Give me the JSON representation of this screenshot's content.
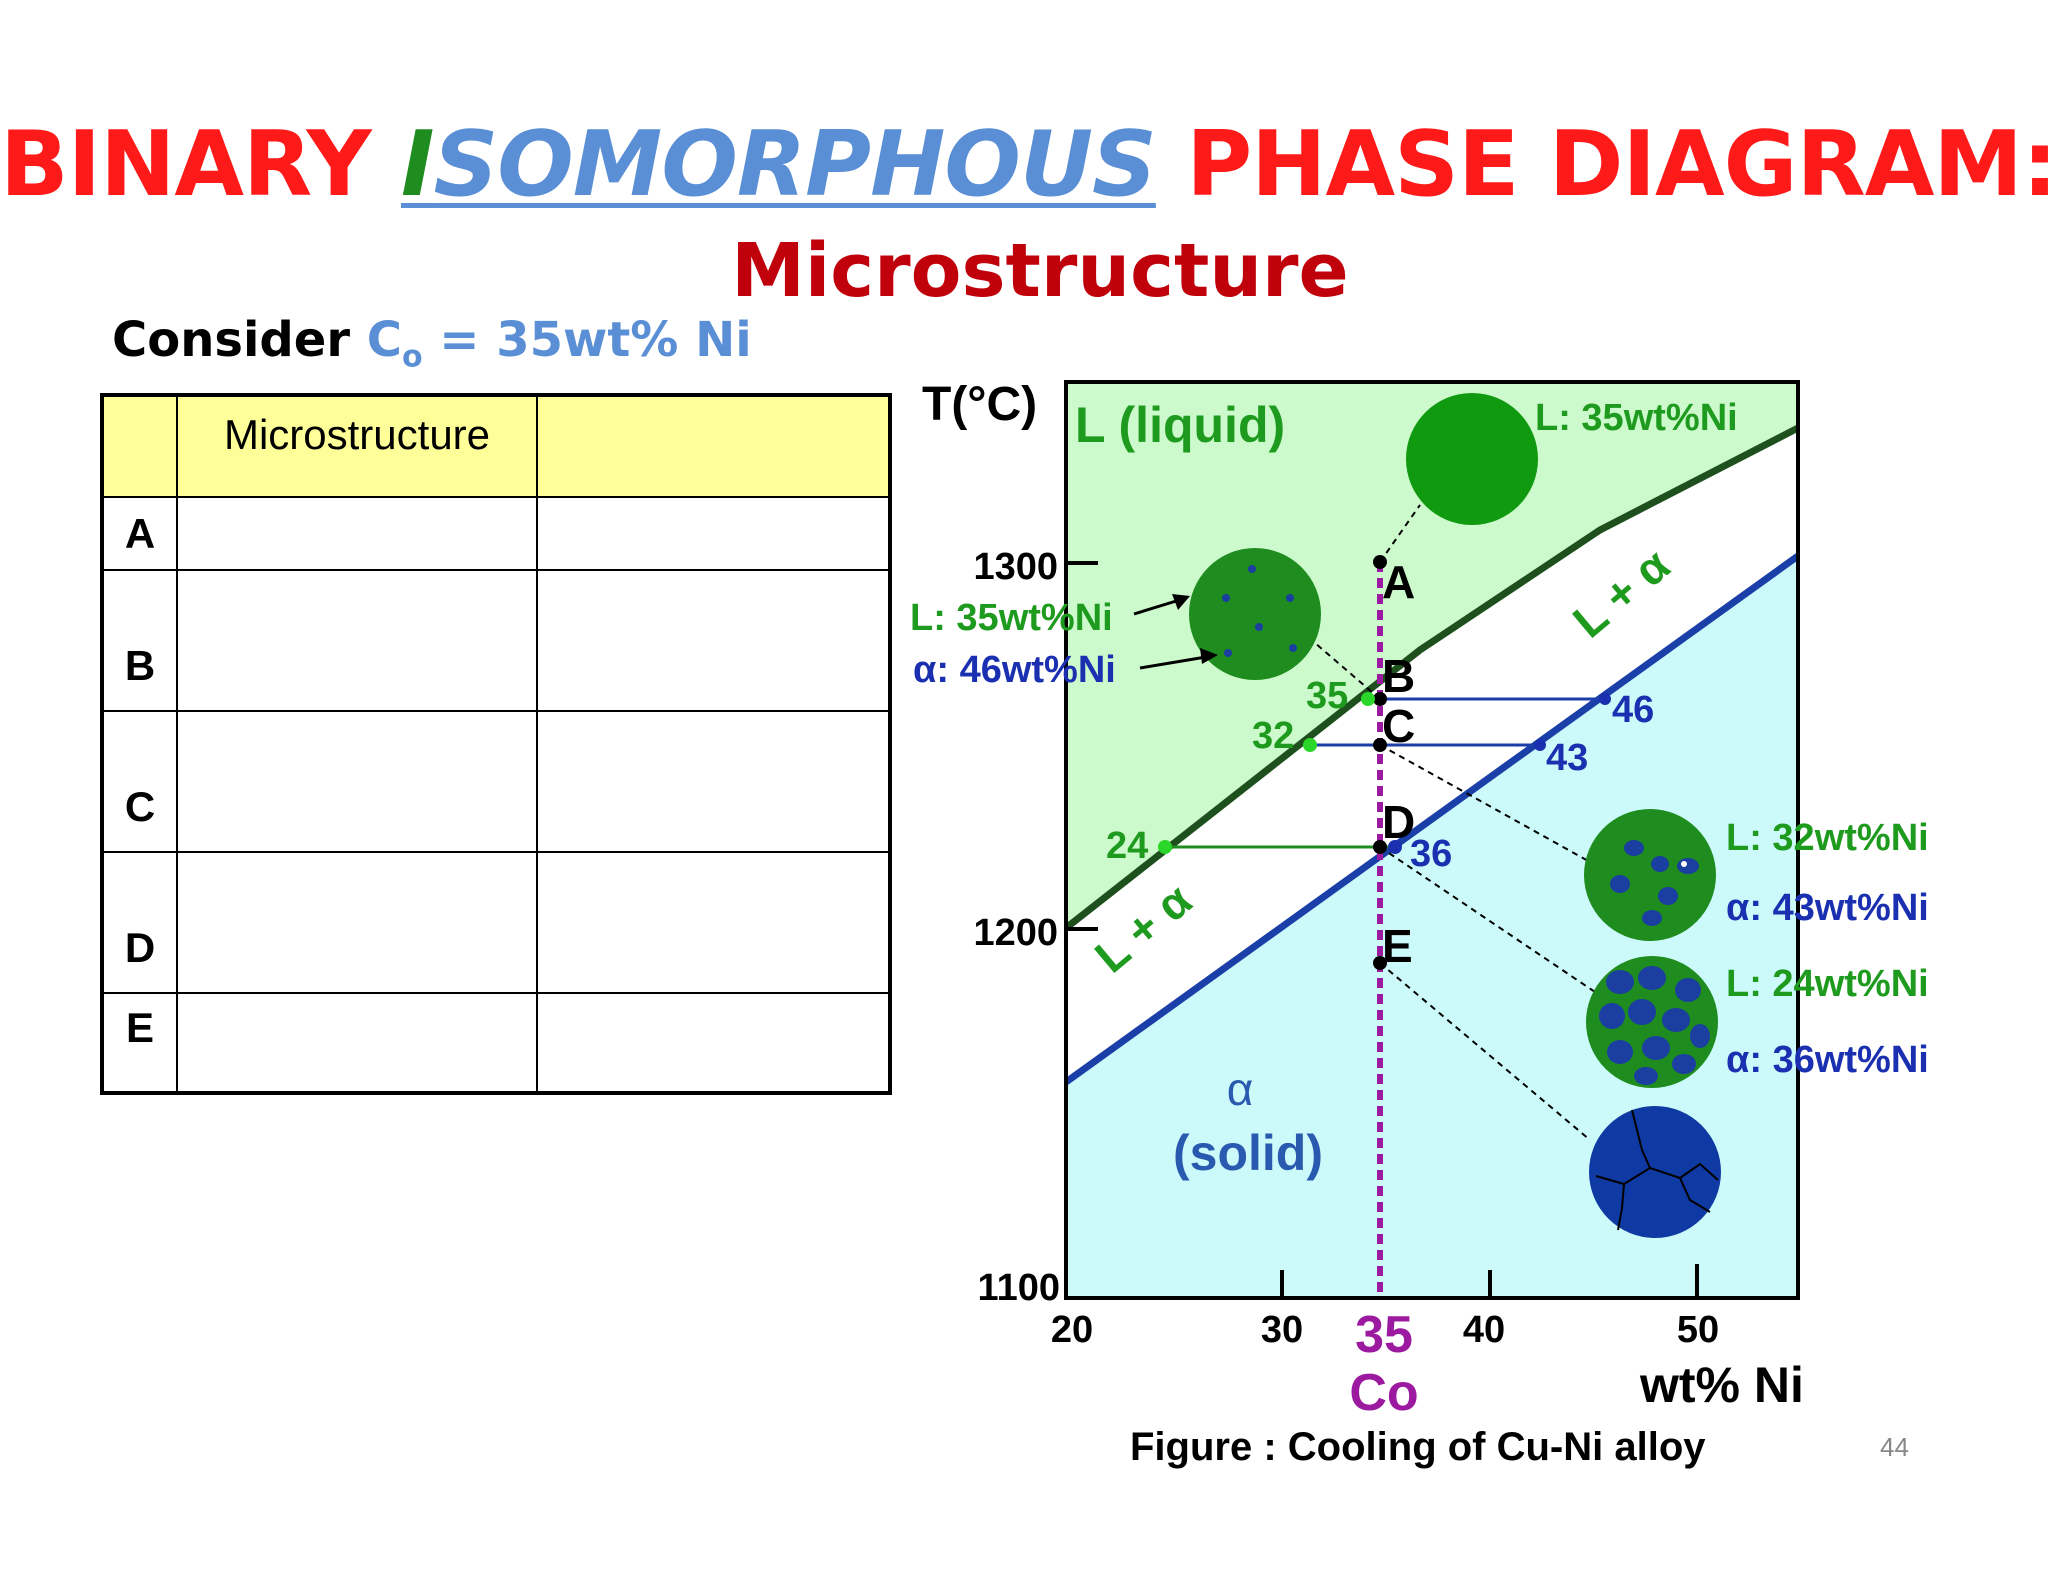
{
  "slide": {
    "title_part1": "BINARY ",
    "title_iso_first": "I",
    "title_iso_rest": "SOMORPHOUS",
    "title_part2": " PHASE DIAGRAM:",
    "subtitle": "Microstructure",
    "consider_label": "Consider ",
    "consider_c": "C",
    "consider_sub": "o",
    "consider_value": " = 35wt% Ni",
    "page_number": "44",
    "caption": "Figure : Cooling of Cu-Ni alloy"
  },
  "table": {
    "header": [
      "",
      "Microstructure",
      ""
    ],
    "rows": [
      "A",
      "B",
      "C",
      "D",
      "E"
    ]
  },
  "diagram": {
    "y_axis_label": "T(°C)",
    "x_axis_label": "wt% Ni",
    "y_ticks": [
      "1300",
      "1200",
      "1100"
    ],
    "x_ticks": [
      "20",
      "30",
      "40",
      "50"
    ],
    "co_value": "35",
    "co_label": "Co",
    "region_liquid": "L (liquid)",
    "region_alpha": "α",
    "region_solid": "(solid)",
    "region_two_phase": "L + α",
    "points": [
      "A",
      "B",
      "C",
      "D",
      "E"
    ],
    "tie_values": {
      "b_left": "35",
      "b_right": "46",
      "c_left": "32",
      "c_right": "43",
      "d_left": "24",
      "d_right": "36"
    },
    "micro_labels": {
      "a_L": "L: 35wt%Ni",
      "b_L": "L: 35wt%Ni",
      "b_alpha": "α: 46wt%Ni",
      "c_L": "L:  32wt%Ni",
      "c_alpha": "α: 43wt%Ni",
      "d_L": "L: 24wt%Ni",
      "d_alpha": "α: 36wt%Ni"
    },
    "colors": {
      "liquid_fill": "#ccfacc",
      "solid_fill": "#ccfafa",
      "liquidus": "#1e501e",
      "solidus": "#1a3fa8",
      "green_text": "#1e9b1e",
      "blue_text": "#1a30b0",
      "purple": "#9b1aa0",
      "grain_green": "#1e8c1e",
      "grain_blue": "#1a3fa0"
    }
  }
}
